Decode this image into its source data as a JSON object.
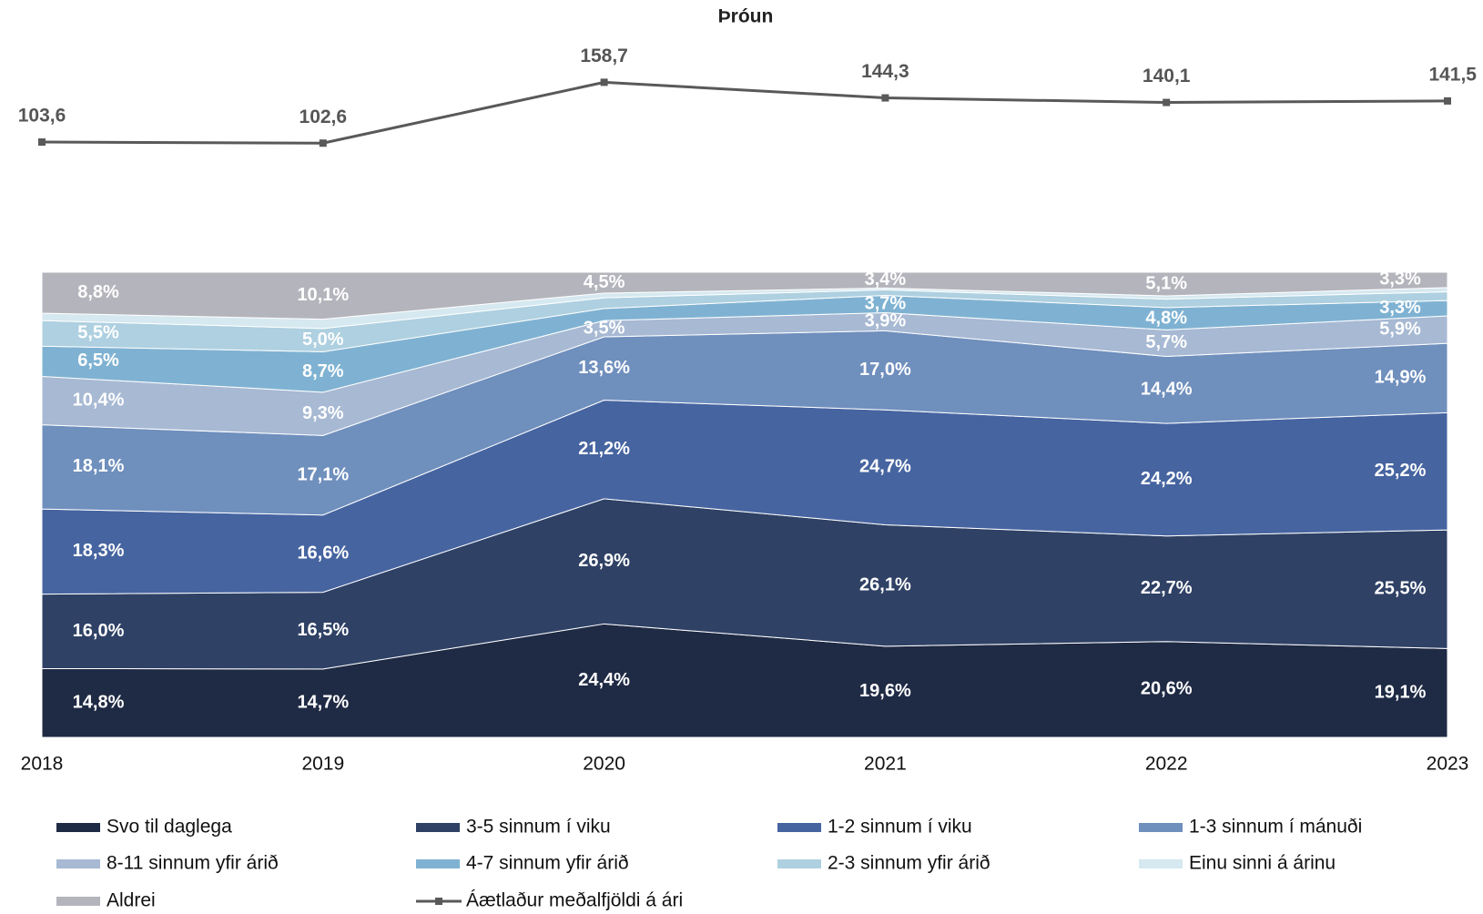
{
  "chart_data": {
    "type": "stacked_area",
    "title": "Þróun",
    "categories": [
      "2018",
      "2019",
      "2020",
      "2021",
      "2022",
      "2023"
    ],
    "ylim": [
      0,
      100
    ],
    "y2lim": [
      60,
      180
    ],
    "series": [
      {
        "name": "Svo til daglega",
        "color": "#1f2a44",
        "values": [
          14.8,
          14.7,
          24.4,
          19.6,
          20.6,
          19.1
        ],
        "value_labels": [
          "14,8%",
          "14,7%",
          "24,4%",
          "19,6%",
          "20,6%",
          "19,1%"
        ]
      },
      {
        "name": "3-5 sinnum í viku",
        "color": "#2f4165",
        "values": [
          16.0,
          16.5,
          26.9,
          26.1,
          22.7,
          25.5
        ],
        "value_labels": [
          "16,0%",
          "16,5%",
          "26,9%",
          "26,1%",
          "22,7%",
          "25,5%"
        ]
      },
      {
        "name": "1-2 sinnum í viku",
        "color": "#4664a0",
        "values": [
          18.3,
          16.6,
          21.2,
          24.7,
          24.2,
          25.2
        ],
        "value_labels": [
          "18,3%",
          "16,6%",
          "21,2%",
          "24,7%",
          "24,2%",
          "25,2%"
        ]
      },
      {
        "name": "1-3 sinnum í mánuði",
        "color": "#6f8fbd",
        "values": [
          18.1,
          17.1,
          13.6,
          17.0,
          14.4,
          14.9
        ],
        "value_labels": [
          "18,1%",
          "17,1%",
          "13,6%",
          "17,0%",
          "14,4%",
          "14,9%"
        ]
      },
      {
        "name": "8-11 sinnum yfir árið",
        "color": "#a7b9d3",
        "values": [
          10.4,
          9.3,
          3.5,
          3.9,
          5.7,
          5.9
        ],
        "value_labels": [
          "10,4%",
          "9,3%",
          "3,5%",
          "3,9%",
          "5,7%",
          "5,9%"
        ]
      },
      {
        "name": "4-7 sinnum yfir árið",
        "color": "#7fb2d2",
        "values": [
          6.5,
          8.7,
          2.6,
          3.7,
          4.8,
          3.3
        ],
        "value_labels": [
          "6,5%",
          "8,7%",
          null,
          "3,7%",
          "4,8%",
          "3,3%"
        ]
      },
      {
        "name": "2-3 sinnum yfir árið",
        "color": "#aed0e0",
        "values": [
          5.5,
          5.0,
          2.3,
          1.2,
          1.8,
          1.9
        ],
        "value_labels": [
          "5,5%",
          "5,0%",
          null,
          null,
          null,
          null
        ]
      },
      {
        "name": "Einu sinni á árinu",
        "color": "#d6e8f0",
        "values": [
          1.6,
          2.0,
          1.0,
          0.4,
          0.7,
          0.9
        ],
        "value_labels": [
          null,
          null,
          null,
          null,
          null,
          null
        ]
      },
      {
        "name": "Aldrei",
        "color": "#b4b4bc",
        "values": [
          8.8,
          10.1,
          4.5,
          3.4,
          5.1,
          3.3
        ],
        "value_labels": [
          "8,8%",
          "10,1%",
          "4,5%",
          "3,4%",
          "5,1%",
          "3,3%"
        ]
      },
      {
        "name": "Áætlaður meðalfjöldi á ári",
        "color": "#595959",
        "type": "line",
        "axis": "y2",
        "values": [
          103.6,
          102.6,
          158.7,
          144.3,
          140.1,
          141.5
        ],
        "value_labels": [
          "103,6",
          "102,6",
          "158,7",
          "144,3",
          "140,1",
          "141,5"
        ]
      }
    ]
  }
}
